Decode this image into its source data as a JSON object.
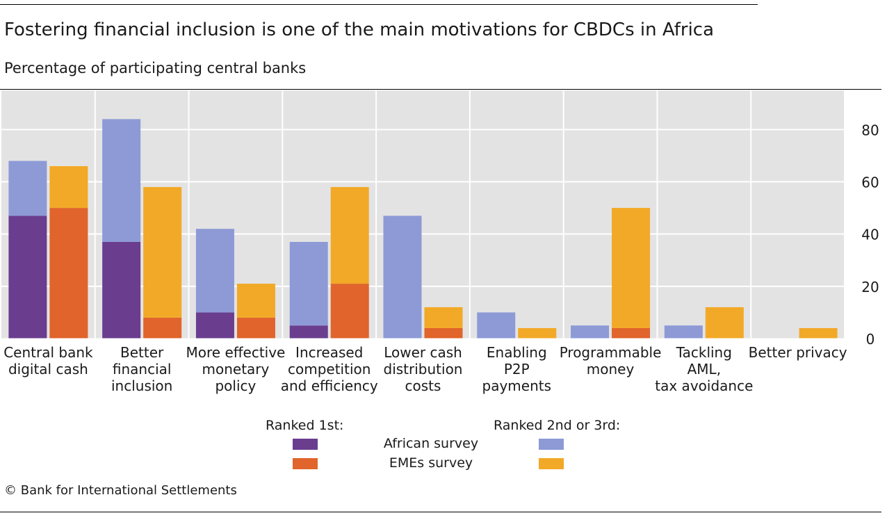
{
  "title": "Fostering financial inclusion is one of the main motivations for CBDCs in Africa",
  "subtitle": "Percentage of participating central banks",
  "legend": {
    "ranked1_heading": "Ranked 1st:",
    "ranked23_heading": "Ranked 2nd or 3rd:",
    "african_label": "African survey",
    "emes_label": "EMEs survey"
  },
  "source": "© Bank for International Settlements",
  "colors": {
    "african_ranked1": "#6a3d8f",
    "african_ranked23": "#8d9ad6",
    "emes_ranked1": "#e0642b",
    "emes_ranked23": "#f2a927",
    "plot_background": "#e3e3e3",
    "grid": "#ffffff"
  },
  "chart_data": {
    "type": "bar",
    "stacked": true,
    "grouped": true,
    "categories": [
      [
        "Central bank",
        "digital cash"
      ],
      [
        "Better",
        "financial",
        "inclusion"
      ],
      [
        "More effective",
        "monetary",
        "policy"
      ],
      [
        "Increased",
        "competition",
        "and efficiency"
      ],
      [
        "Lower cash",
        "distribution",
        "costs"
      ],
      [
        "Enabling",
        "P2P",
        "payments"
      ],
      [
        "Programmable",
        "money"
      ],
      [
        "Tackling",
        "AML,",
        "tax avoidance"
      ],
      [
        "Better privacy"
      ]
    ],
    "groups": [
      {
        "name": "African survey",
        "ranked_1st": [
          47,
          37,
          10,
          5,
          0,
          0,
          0,
          0,
          0
        ],
        "ranked_2nd_or_3rd": [
          21,
          47,
          32,
          32,
          47,
          10,
          5,
          5,
          0
        ]
      },
      {
        "name": "EMEs survey",
        "ranked_1st": [
          50,
          8,
          8,
          21,
          4,
          0,
          4,
          0,
          0
        ],
        "ranked_2nd_or_3rd": [
          16,
          50,
          13,
          37,
          8,
          4,
          46,
          12,
          4
        ]
      }
    ],
    "y_axis": {
      "min": 0,
      "max": 95,
      "ticks": [
        0,
        20,
        40,
        60,
        80
      ],
      "position": "right"
    },
    "grid": true
  }
}
